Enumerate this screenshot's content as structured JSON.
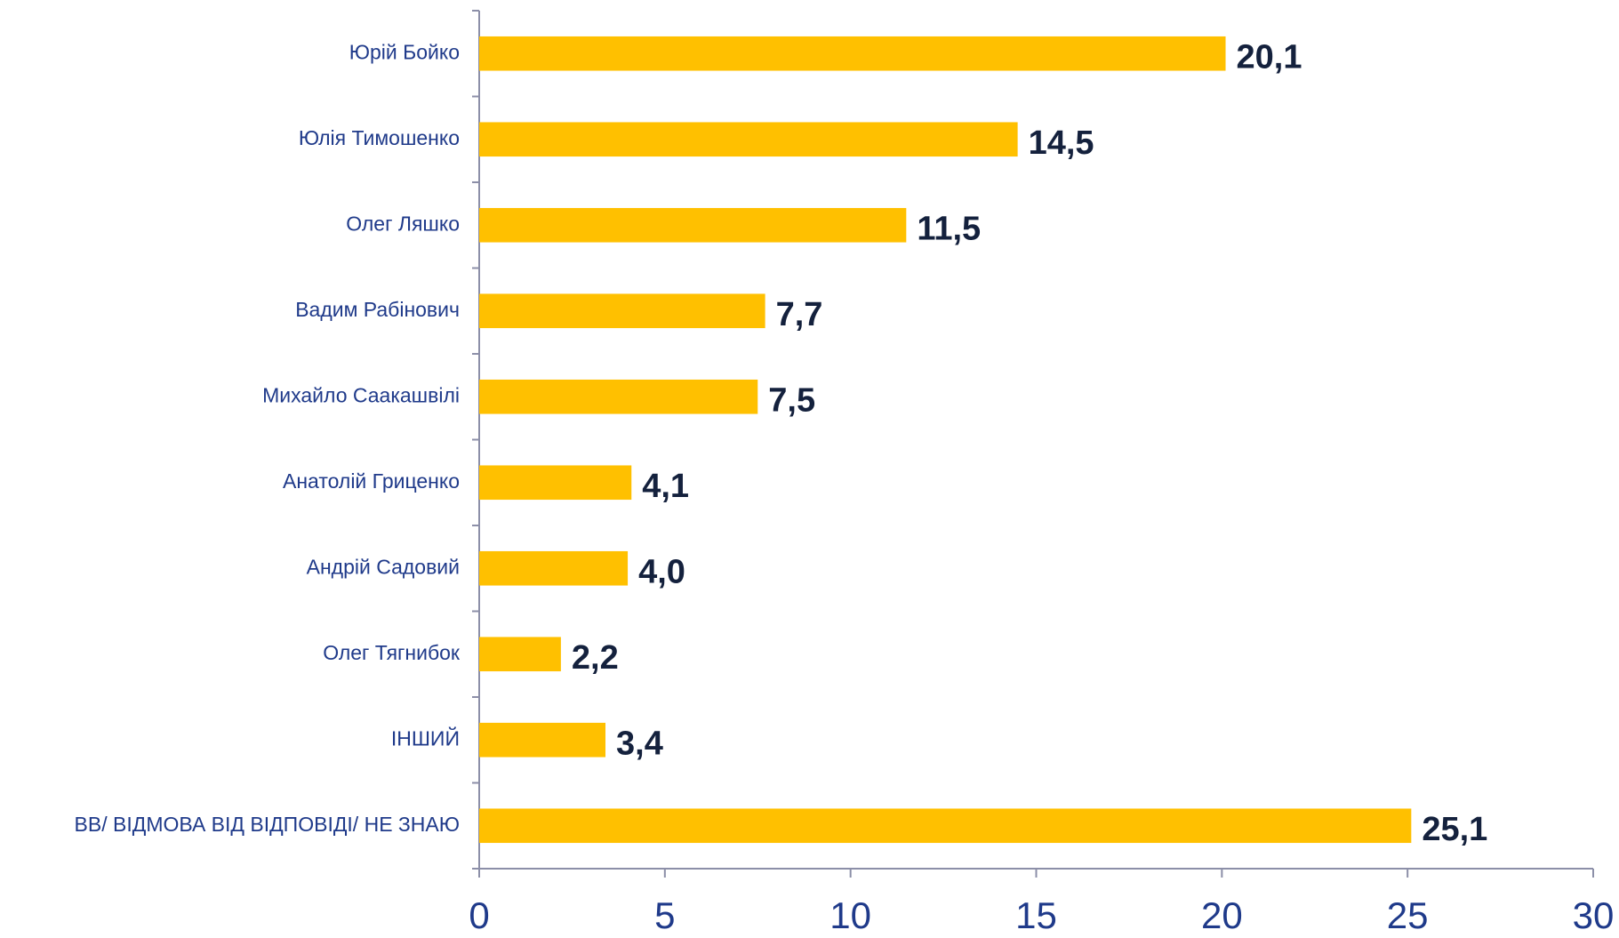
{
  "chart_data": {
    "type": "bar",
    "orientation": "horizontal",
    "categories": [
      "Юрій Бойко",
      "Юлія Тимошенко",
      "Олег Ляшко",
      "Вадим Рабінович",
      "Михайло Саакашвілі",
      "Анатолій Гриценко",
      "Андрій Садовий",
      "Олег Тягнибок",
      "ІНШИЙ",
      "ВВ/ ВІДМОВА ВІД ВІДПОВІДІ/ НЕ ЗНАЮ"
    ],
    "values": [
      20.1,
      14.5,
      11.5,
      7.7,
      7.5,
      4.1,
      4.0,
      2.2,
      3.4,
      25.1
    ],
    "value_labels": [
      "20,1",
      "14,5",
      "11,5",
      "7,7",
      "7,5",
      "4,1",
      "4,0",
      "2,2",
      "3,4",
      "25,1"
    ],
    "color": "#FFC000",
    "xlim": [
      0,
      30
    ],
    "xticks": [
      0,
      5,
      10,
      15,
      20,
      25,
      30
    ],
    "grid": false
  }
}
